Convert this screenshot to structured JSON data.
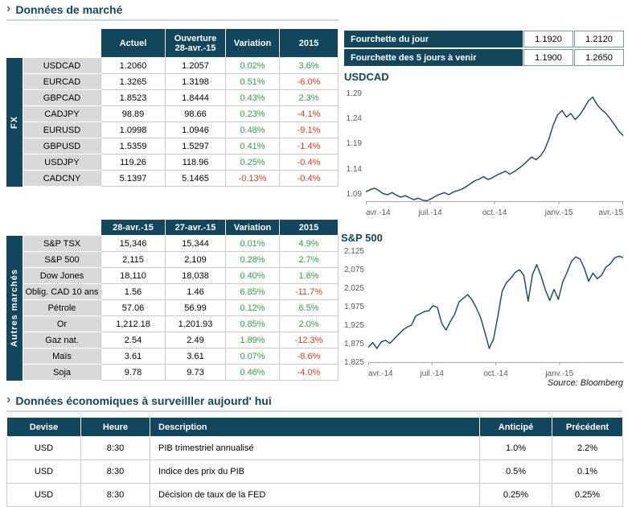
{
  "colors": {
    "navy": "#12465C",
    "green": "#2F9E41",
    "red": "#E0391E",
    "label_gray": "#D9D9D9"
  },
  "ui": {
    "chevron": "›"
  },
  "header": {
    "title": "Données de marché"
  },
  "fx": {
    "side_label": "FX",
    "col_headers": [
      "Actuel",
      "Ouverture\n28-avr.-15",
      "Variation",
      "2015"
    ],
    "rows": [
      {
        "label": "USDCAD",
        "values": [
          "1.2060",
          "1.2057",
          "0.02%",
          "3.6%"
        ]
      },
      {
        "label": "EURCAD",
        "values": [
          "1.3265",
          "1.3198",
          "0.51%",
          "-6.0%"
        ]
      },
      {
        "label": "GBPCAD",
        "values": [
          "1.8523",
          "1.8444",
          "0.43%",
          "2.3%"
        ]
      },
      {
        "label": "CADJPY",
        "values": [
          "98.89",
          "98.66",
          "0.23%",
          "-4.1%"
        ]
      },
      {
        "label": "EURUSD",
        "values": [
          "1.0998",
          "1.0946",
          "0.48%",
          "-9.1%"
        ]
      },
      {
        "label": "GBPUSD",
        "values": [
          "1.5359",
          "1.5297",
          "0.41%",
          "-1.4%"
        ]
      },
      {
        "label": "USDJPY",
        "values": [
          "119.26",
          "118.96",
          "0.25%",
          "-0.4%"
        ]
      },
      {
        "label": "CADCNY",
        "values": [
          "5.1397",
          "5.1465",
          "-0.13%",
          "-0.4%"
        ]
      }
    ]
  },
  "ranges": {
    "rows": [
      {
        "label": "Fourchette du jour",
        "low": "1.1920",
        "high": "1.2120"
      },
      {
        "label": "Fourchette des 5 jours à venir",
        "low": "1.1900",
        "high": "1.2650"
      }
    ]
  },
  "markets": {
    "side_label": "Autres marchés",
    "col_headers": [
      "28-avr.-15",
      "27-avr.-15",
      "Variation",
      "2015"
    ],
    "rows": [
      {
        "label": "S&P TSX",
        "values": [
          "15,346",
          "15,344",
          "0.01%",
          "4.9%"
        ]
      },
      {
        "label": "S&P 500",
        "values": [
          "2,115",
          "2,109",
          "0.28%",
          "2.7%"
        ]
      },
      {
        "label": "Dow Jones",
        "values": [
          "18,110",
          "18,038",
          "0.40%",
          "1.6%"
        ]
      },
      {
        "label": "Oblig. CAD 10 ans",
        "values": [
          "1.56",
          "1.46",
          "6.85%",
          "-11.7%"
        ]
      },
      {
        "label": "Pétrole",
        "values": [
          "57.06",
          "56.99",
          "0.12%",
          "6.5%"
        ]
      },
      {
        "label": "Or",
        "values": [
          "1,212.18",
          "1,201.93",
          "0.85%",
          "2.0%"
        ]
      },
      {
        "label": "Gaz nat.",
        "values": [
          "2.54",
          "2.49",
          "1.89%",
          "-12.3%"
        ]
      },
      {
        "label": "Maïs",
        "values": [
          "3.61",
          "3.61",
          "0.07%",
          "-8.6%"
        ]
      },
      {
        "label": "Soja",
        "values": [
          "9.78",
          "9.73",
          "0.46%",
          "-4.0%"
        ]
      }
    ]
  },
  "source": "Source: Bloomberg",
  "econ": {
    "title": "Données économiques à surveilller aujourd' hui",
    "headers": [
      "Devise",
      "Heure",
      "Description",
      "Anticipé",
      "Précédent"
    ],
    "rows": [
      [
        "USD",
        "8:30",
        "PIB trimestriel annualisé",
        "1.0%",
        "2.2%"
      ],
      [
        "USD",
        "8:30",
        "Indice des prix du PIB",
        "0.5%",
        "0.1%"
      ],
      [
        "USD",
        "8:30",
        "Décision de taux de la FED",
        "0.25%",
        "0.25%"
      ]
    ]
  },
  "chart_data": [
    {
      "type": "line",
      "title": "USDCAD",
      "ylim": [
        1.075,
        1.3
      ],
      "yticks": [
        {
          "label": "1.29",
          "value": 1.29
        },
        {
          "label": "1.24",
          "value": 1.24
        },
        {
          "label": "1.19",
          "value": 1.19
        },
        {
          "label": "1.14",
          "value": 1.14
        },
        {
          "label": "1.09",
          "value": 1.09
        }
      ],
      "xticks": [
        {
          "label": "avr.-14",
          "pos": 0
        },
        {
          "label": "juil.-14",
          "pos": 0.25
        },
        {
          "label": "oct.-14",
          "pos": 0.5
        },
        {
          "label": "janv.-15",
          "pos": 0.75
        },
        {
          "label": "avr.-15",
          "pos": 1
        }
      ],
      "values": [
        1.094,
        1.098,
        1.101,
        1.096,
        1.09,
        1.088,
        1.092,
        1.087,
        1.083,
        1.086,
        1.082,
        1.078,
        1.081,
        1.077,
        1.076,
        1.08,
        1.085,
        1.089,
        1.092,
        1.088,
        1.093,
        1.096,
        1.099,
        1.104,
        1.11,
        1.116,
        1.119,
        1.124,
        1.118,
        1.122,
        1.127,
        1.131,
        1.135,
        1.129,
        1.134,
        1.14,
        1.147,
        1.155,
        1.163,
        1.158,
        1.165,
        1.178,
        1.2,
        1.228,
        1.248,
        1.256,
        1.243,
        1.25,
        1.238,
        1.247,
        1.26,
        1.275,
        1.283,
        1.268,
        1.258,
        1.251,
        1.24,
        1.228,
        1.215,
        1.206
      ],
      "grid": false,
      "legend": false
    },
    {
      "type": "line",
      "title": "S&P 500",
      "ylim": [
        1825,
        2130
      ],
      "yticks": [
        {
          "label": "2,125",
          "value": 2125
        },
        {
          "label": "2,075",
          "value": 2075
        },
        {
          "label": "2,025",
          "value": 2025
        },
        {
          "label": "1,975",
          "value": 1975
        },
        {
          "label": "1,925",
          "value": 1925
        },
        {
          "label": "1,875",
          "value": 1875
        },
        {
          "label": "1,825",
          "value": 1825
        }
      ],
      "xticks": [
        {
          "label": "avr.-14",
          "pos": 0
        },
        {
          "label": "juil.-14",
          "pos": 0.25
        },
        {
          "label": "oct.-14",
          "pos": 0.5
        },
        {
          "label": "janv.-15",
          "pos": 0.75
        }
      ],
      "values": [
        1865,
        1878,
        1862,
        1880,
        1884,
        1876,
        1888,
        1900,
        1912,
        1920,
        1925,
        1950,
        1956,
        1962,
        1964,
        1978,
        1973,
        1930,
        1912,
        1935,
        1955,
        1988,
        1998,
        2008,
        1994,
        1972,
        1946,
        1905,
        1862,
        1888,
        1950,
        2018,
        2040,
        2052,
        2068,
        2075,
        2060,
        1990,
        2062,
        2089,
        2058,
        2020,
        1992,
        2022,
        1995,
        2042,
        2068,
        2097,
        2110,
        2104,
        2080,
        2044,
        2066,
        2051,
        2060,
        2082,
        2091,
        2107,
        2112,
        2108
      ],
      "grid": false,
      "legend": false
    }
  ]
}
